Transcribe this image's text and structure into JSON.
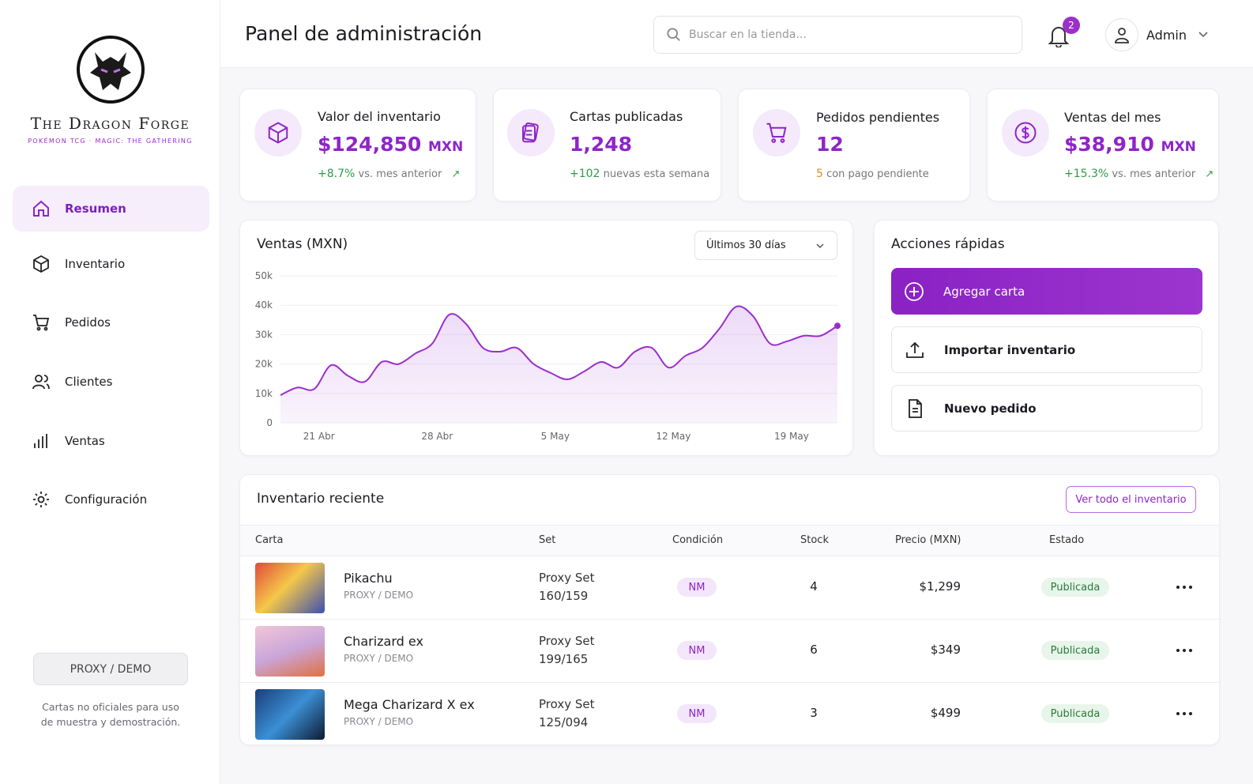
{
  "brand": {
    "name": "The Dragon Forge",
    "tagline": "POKÉMON TCG · MAGIC: THE GATHERING"
  },
  "nav": [
    "Resumen",
    "Inventario",
    "Pedidos",
    "Clientes",
    "Ventas",
    "Configuración"
  ],
  "demo": {
    "badge": "PROXY / DEMO",
    "note": "Cartas no oficiales para uso de muestra y demostración."
  },
  "header": {
    "title": "Panel de administración",
    "search_placeholder": "Buscar en la tienda...",
    "notifications": "2",
    "user": "Admin"
  },
  "stats": [
    {
      "label": "Valor del inventario",
      "value": "$124,850",
      "unit": "MXN",
      "change": "+8.7%",
      "note": "vs. mes anterior"
    },
    {
      "label": "Cartas publicadas",
      "value": "1,248",
      "change": "+102",
      "note": "nuevas esta semana"
    },
    {
      "label": "Pedidos pendientes",
      "value": "12",
      "change": "5",
      "note": "con pago pendiente"
    },
    {
      "label": "Ventas del mes",
      "value": "$38,910",
      "unit": "MXN",
      "change": "+15.3%",
      "note": "vs. mes anterior"
    }
  ],
  "chart_data": {
    "type": "line",
    "title": "Ventas (MXN)",
    "range_selector": "Últimos 30 días",
    "categories": [
      null,
      null,
      "21 Abr",
      null,
      null,
      null,
      null,
      null,
      null,
      "28 Abr",
      null,
      null,
      null,
      null,
      null,
      null,
      "5 May",
      null,
      null,
      null,
      null,
      null,
      null,
      "12 May",
      null,
      null,
      null,
      null,
      null,
      null,
      "19 May",
      null,
      null,
      null
    ],
    "values": [
      9400,
      12000,
      11500,
      19600,
      16000,
      14000,
      20700,
      20000,
      23600,
      27000,
      36800,
      33600,
      25500,
      24200,
      25500,
      20000,
      17000,
      14800,
      17500,
      20700,
      18800,
      24200,
      25500,
      18800,
      22800,
      25500,
      32000,
      39500,
      36300,
      27000,
      27700,
      29600,
      29600,
      33000
    ],
    "color": "#9b2fc9",
    "ylim": [
      0,
      50000
    ],
    "yticks": [
      0,
      {
        "value": 10000,
        "label": "10k"
      },
      {
        "value": 20000,
        "label": "20k"
      },
      {
        "value": 30000,
        "label": "30k"
      },
      {
        "value": 40000,
        "label": "40k"
      },
      {
        "value": 50000,
        "label": "50k"
      }
    ],
    "grid": true
  },
  "quick_actions": {
    "title": "Acciones rápidas",
    "items": [
      "Agregar carta",
      "Importar inventario",
      "Nuevo pedido"
    ]
  },
  "inventory": {
    "title": "Inventario reciente",
    "view_all": "Ver todo el inventario",
    "columns": [
      "Carta",
      "Set",
      "Condición",
      "Stock",
      "Precio (MXN)",
      "Estado"
    ],
    "rows": [
      {
        "name": "Pikachu",
        "sub": "PROXY / DEMO",
        "set": "Proxy Set",
        "number": "160/159",
        "condition": "NM",
        "stock": "4",
        "price": "$1,299",
        "status": "Publicada"
      },
      {
        "name": "Charizard ex",
        "sub": "PROXY / DEMO",
        "set": "Proxy Set",
        "number": "199/165",
        "condition": "NM",
        "stock": "6",
        "price": "$349",
        "status": "Publicada"
      },
      {
        "name": "Mega Charizard X ex",
        "sub": "PROXY / DEMO",
        "set": "Proxy Set",
        "number": "125/094",
        "condition": "NM",
        "stock": "3",
        "price": "$499",
        "status": "Publicada"
      }
    ]
  }
}
